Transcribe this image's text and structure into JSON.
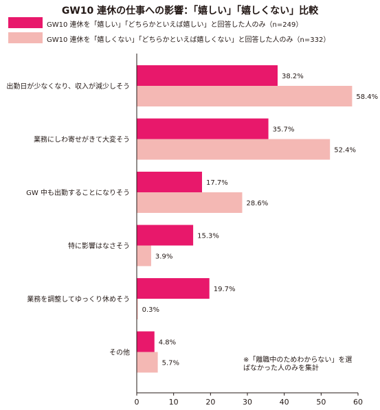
{
  "title": "GW10 連休の仕事への影響：「嬉しい」「嬉しくない」比較",
  "legend": [
    {
      "label": "GW10 連休を「嬉しい」「どちらかといえば嬉しい」と回答した人のみ（n=249）",
      "color": "#e8186b"
    },
    {
      "label": "GW10 連休を「嬉しくない」「どちらかといえば嬉しくない」と回答した人のみ（n=332）",
      "color": "#f4b8b4"
    }
  ],
  "note": "※「離職中のためわからない」を選ばなかった人のみを集計",
  "chart_data": {
    "type": "bar",
    "orientation": "horizontal",
    "title": "GW10 連休の仕事への影響：「嬉しい」「嬉しくない」比較",
    "categories": [
      "出勤日が少なくなり、収入が減少しそう",
      "業務にしわ寄せがきて大変そう",
      "GW 中も出勤することになりそう",
      "特に影響はなさそう",
      "業務を調整してゆっくり休めそう",
      "その他"
    ],
    "series": [
      {
        "name": "GW10 連休を「嬉しい」「どちらかといえば嬉しい」と回答した人のみ（n=249）",
        "color": "#e8186b",
        "values": [
          38.2,
          35.7,
          17.7,
          15.3,
          19.7,
          4.8
        ],
        "labels": [
          "38.2%",
          "35.7%",
          "17.7%",
          "15.3%",
          "19.7%",
          "4.8%"
        ]
      },
      {
        "name": "GW10 連休を「嬉しくない」「どちらかといえば嬉しくない」と回答した人のみ（n=332）",
        "color": "#f4b8b4",
        "values": [
          58.4,
          52.4,
          28.6,
          3.9,
          0.3,
          5.7
        ],
        "labels": [
          "58.4%",
          "52.4%",
          "28.6%",
          "3.9%",
          "0.3%",
          "5.7%"
        ]
      }
    ],
    "xlim": [
      0,
      60
    ],
    "xticks": [
      0,
      10,
      20,
      30,
      40,
      50,
      60
    ],
    "grid": false,
    "legend_position": "top"
  }
}
